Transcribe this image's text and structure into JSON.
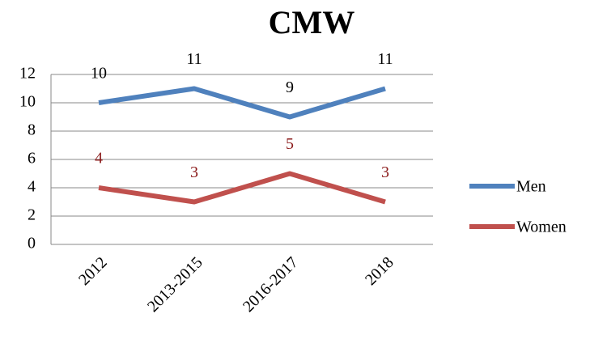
{
  "chart_data": {
    "type": "line",
    "title": "CMW",
    "categories": [
      "2012",
      "2013-2015",
      "2016-2017",
      "2018"
    ],
    "series": [
      {
        "name": "Men",
        "color": "#4f81bd",
        "label_color": "#000000",
        "values": [
          10,
          11,
          9,
          11
        ]
      },
      {
        "name": "Women",
        "color": "#c0504d",
        "label_color": "#8b1a1a",
        "values": [
          4,
          3,
          5,
          3
        ]
      }
    ],
    "ylim": [
      0,
      12
    ],
    "yticks": [
      0,
      2,
      4,
      6,
      8,
      10,
      12
    ],
    "grid": true,
    "legend": "right"
  }
}
